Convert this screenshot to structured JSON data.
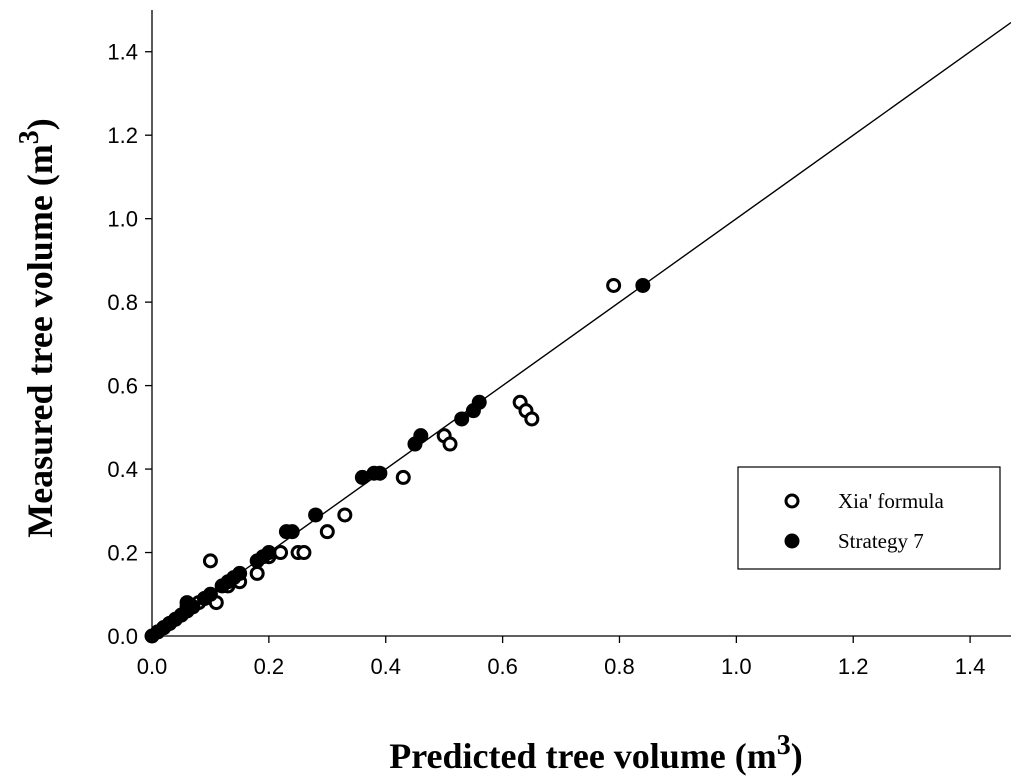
{
  "chart_data": {
    "type": "scatter",
    "xlabel": "Predicted tree volume (m",
    "xlabel_sup": "3",
    "xlabel_end": ")",
    "ylabel": "Measured tree volume (m",
    "ylabel_sup": "3",
    "ylabel_end": ")",
    "xlim": [
      0,
      1.47
    ],
    "ylim": [
      0,
      1.5
    ],
    "xticks": [
      "0.0",
      "0.2",
      "0.4",
      "0.6",
      "0.8",
      "1.0",
      "1.2",
      "1.4"
    ],
    "yticks": [
      "0.0",
      "0.2",
      "0.4",
      "0.6",
      "0.8",
      "1.0",
      "1.2",
      "1.4"
    ],
    "grid": false,
    "legend_position": "lower-right",
    "reference_line": {
      "x": [
        0,
        1.47
      ],
      "y": [
        0,
        1.47
      ]
    },
    "series": [
      {
        "name": "Xia' formula",
        "marker": "open-circle",
        "points": [
          [
            0.01,
            0.01
          ],
          [
            0.02,
            0.02
          ],
          [
            0.03,
            0.03
          ],
          [
            0.05,
            0.05
          ],
          [
            0.06,
            0.07
          ],
          [
            0.08,
            0.08
          ],
          [
            0.09,
            0.09
          ],
          [
            0.1,
            0.18
          ],
          [
            0.11,
            0.08
          ],
          [
            0.13,
            0.12
          ],
          [
            0.15,
            0.13
          ],
          [
            0.18,
            0.15
          ],
          [
            0.2,
            0.19
          ],
          [
            0.22,
            0.2
          ],
          [
            0.25,
            0.2
          ],
          [
            0.26,
            0.2
          ],
          [
            0.3,
            0.25
          ],
          [
            0.33,
            0.29
          ],
          [
            0.43,
            0.38
          ],
          [
            0.5,
            0.48
          ],
          [
            0.51,
            0.46
          ],
          [
            0.63,
            0.56
          ],
          [
            0.64,
            0.54
          ],
          [
            0.65,
            0.52
          ],
          [
            0.79,
            0.84
          ]
        ]
      },
      {
        "name": "Strategy 7",
        "marker": "filled-circle",
        "points": [
          [
            0.0,
            0.0
          ],
          [
            0.01,
            0.01
          ],
          [
            0.02,
            0.02
          ],
          [
            0.03,
            0.03
          ],
          [
            0.04,
            0.04
          ],
          [
            0.05,
            0.05
          ],
          [
            0.06,
            0.06
          ],
          [
            0.06,
            0.08
          ],
          [
            0.07,
            0.07
          ],
          [
            0.09,
            0.09
          ],
          [
            0.1,
            0.1
          ],
          [
            0.12,
            0.12
          ],
          [
            0.13,
            0.13
          ],
          [
            0.14,
            0.14
          ],
          [
            0.15,
            0.15
          ],
          [
            0.18,
            0.18
          ],
          [
            0.19,
            0.19
          ],
          [
            0.2,
            0.2
          ],
          [
            0.23,
            0.25
          ],
          [
            0.24,
            0.25
          ],
          [
            0.28,
            0.29
          ],
          [
            0.36,
            0.38
          ],
          [
            0.38,
            0.39
          ],
          [
            0.39,
            0.39
          ],
          [
            0.45,
            0.46
          ],
          [
            0.46,
            0.48
          ],
          [
            0.53,
            0.52
          ],
          [
            0.55,
            0.54
          ],
          [
            0.56,
            0.56
          ],
          [
            0.84,
            0.84
          ]
        ]
      }
    ]
  }
}
